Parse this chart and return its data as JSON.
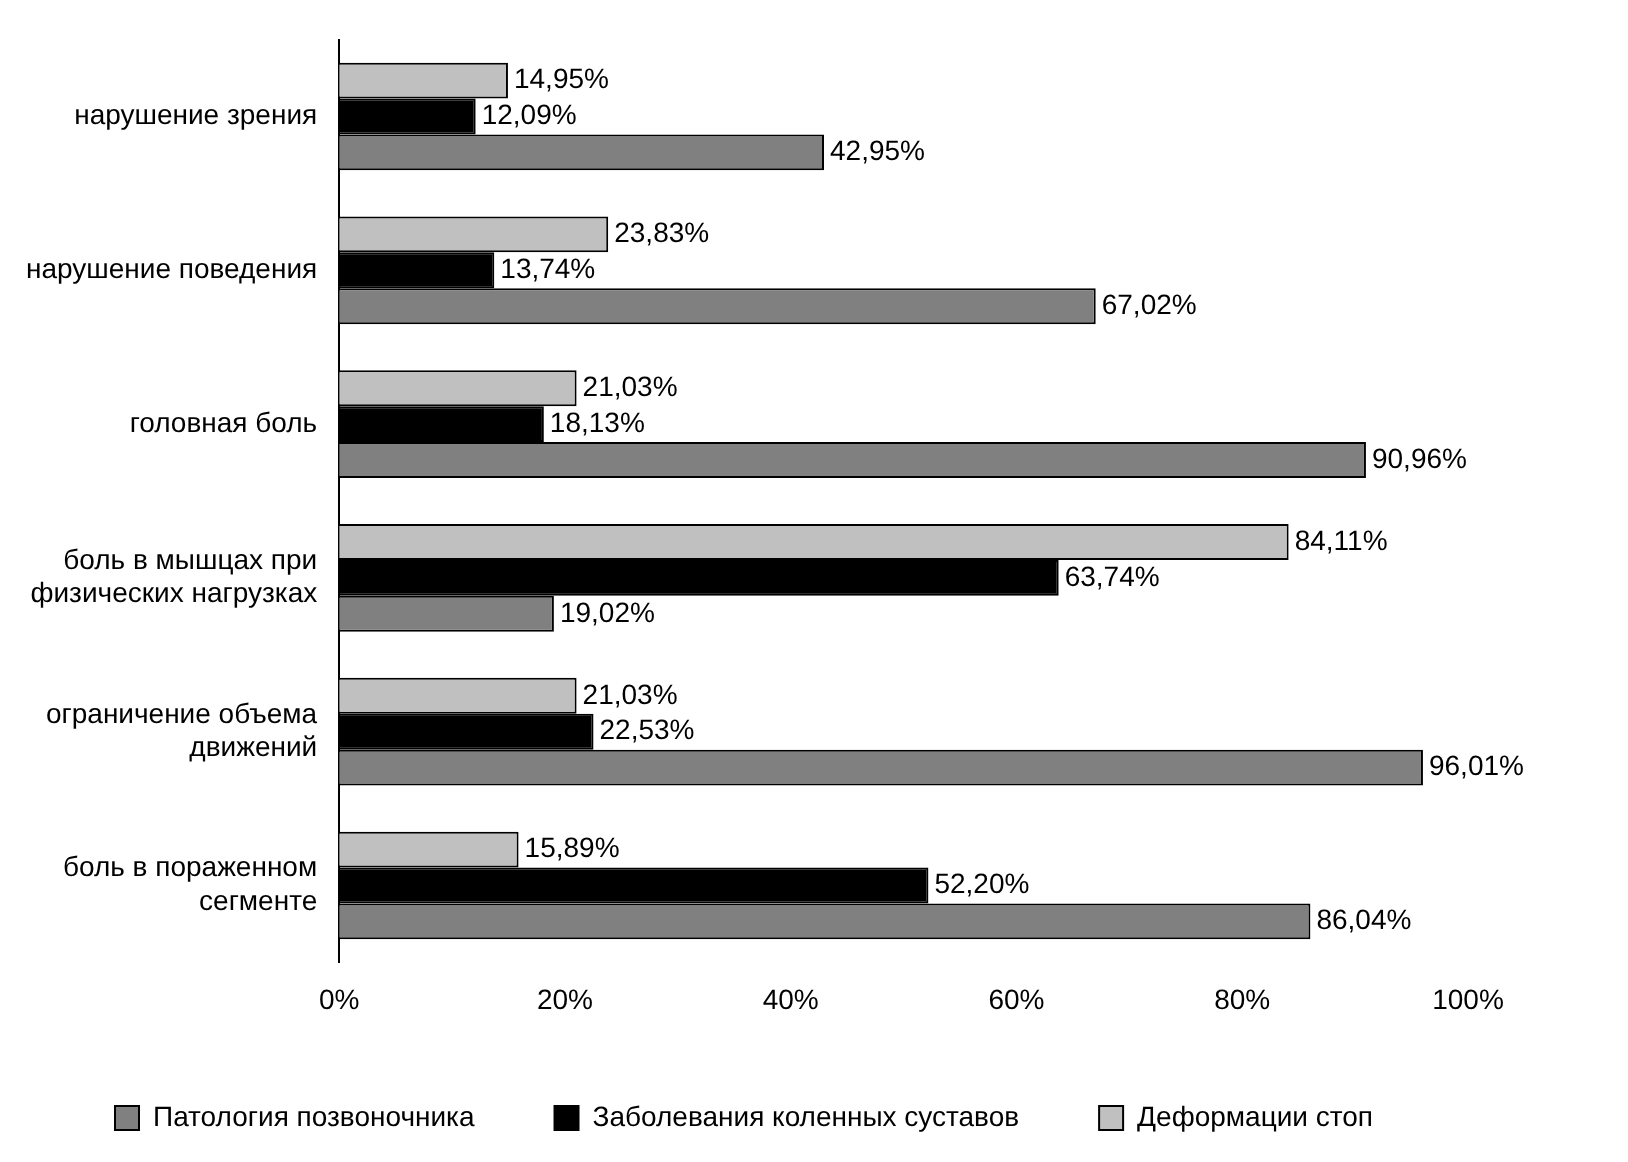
{
  "chart_data": {
    "type": "bar",
    "orientation": "horizontal",
    "categories": [
      "нарушение зрения",
      "нарушение поведения",
      "головная боль",
      "боль в мышцах при физических нагрузках",
      "ограничение объема движений",
      "боль в пораженном сегменте"
    ],
    "series": [
      {
        "name": "Патология позвоночника",
        "color": "#808080",
        "values": [
          42.95,
          67.02,
          90.96,
          19.02,
          96.01,
          86.04
        ],
        "value_labels": [
          "42,95%",
          "67,02%",
          "90,96%",
          "19,02%",
          "96,01%",
          "86,04%"
        ]
      },
      {
        "name": "Заболевания коленных суставов",
        "color": "#000000",
        "values": [
          12.09,
          13.74,
          18.13,
          63.74,
          22.53,
          52.2
        ],
        "value_labels": [
          "12,09%",
          "13,74%",
          "18,13%",
          "63,74%",
          "22,53%",
          "52,20%"
        ]
      },
      {
        "name": "Деформации стоп",
        "color": "#c0c0c0",
        "values": [
          14.95,
          23.83,
          21.03,
          84.11,
          21.03,
          15.89
        ],
        "value_labels": [
          "14,95%",
          "23,83%",
          "21,03%",
          "84,11%",
          "21,03%",
          "15,89%"
        ]
      }
    ],
    "xlim": [
      0,
      100
    ],
    "xticks": [
      {
        "value": 0,
        "label": "0%"
      },
      {
        "value": 20,
        "label": "20%"
      },
      {
        "value": 40,
        "label": "40%"
      },
      {
        "value": 60,
        "label": "60%"
      },
      {
        "value": 80,
        "label": "80%"
      },
      {
        "value": 100,
        "label": "100%"
      }
    ],
    "grid": false,
    "legend": "bottom"
  }
}
